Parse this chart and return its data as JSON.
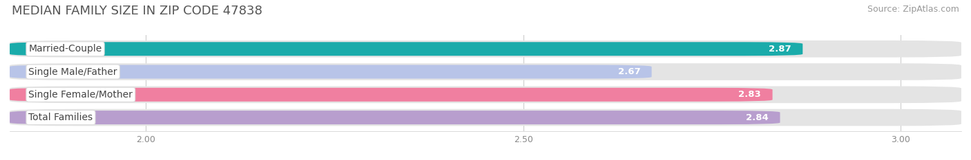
{
  "title": "MEDIAN FAMILY SIZE IN ZIP CODE 47838",
  "source": "Source: ZipAtlas.com",
  "categories": [
    "Married-Couple",
    "Single Male/Father",
    "Single Female/Mother",
    "Total Families"
  ],
  "values": [
    2.87,
    2.67,
    2.83,
    2.84
  ],
  "bar_colors": [
    "#1aabaa",
    "#b8c4e8",
    "#f07fa0",
    "#b89ece"
  ],
  "label_colors": [
    "#ffffff",
    "#ffffff",
    "#ffffff",
    "#ffffff"
  ],
  "value_label_colors": [
    "#ffffff",
    "#555555",
    "#555555",
    "#555555"
  ],
  "xlim_left": 1.82,
  "xlim_right": 3.08,
  "xticks": [
    2.0,
    2.5,
    3.0
  ],
  "xtick_labels": [
    "2.00",
    "2.50",
    "3.00"
  ],
  "background_color": "#ffffff",
  "bar_bg_color": "#e4e4e4",
  "title_fontsize": 13,
  "source_fontsize": 9,
  "bar_label_fontsize": 9.5,
  "category_fontsize": 10,
  "tick_fontsize": 9
}
